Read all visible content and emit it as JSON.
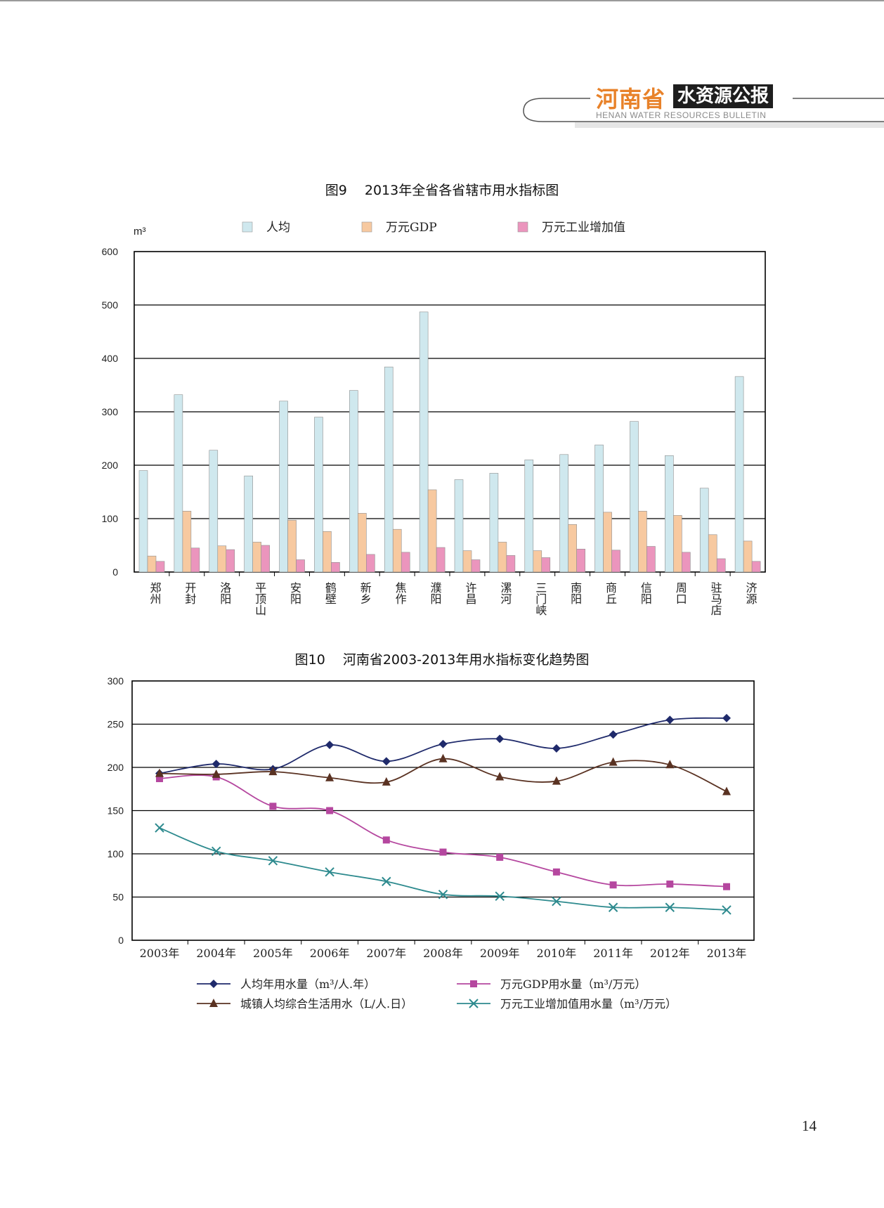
{
  "header": {
    "brand_cn": "河南省",
    "brand_box": "水资源公报",
    "brand_en": "HENAN WATER RESOURCES BULLETIN",
    "accent_color": "#e8822a"
  },
  "page_number": "14",
  "chart_data": [
    {
      "type": "bar",
      "title": "图9　 2013年全省各省辖市用水指标图",
      "ylabel": "m³",
      "ylim": [
        0,
        600
      ],
      "yticks": [
        0,
        100,
        200,
        300,
        400,
        500,
        600
      ],
      "categories": [
        "郑州",
        "开封",
        "洛阳",
        "平顶山",
        "安阳",
        "鹤壁",
        "新乡",
        "焦作",
        "濮阳",
        "许昌",
        "漯河",
        "三门峡",
        "南阳",
        "商丘",
        "信阳",
        "周口",
        "驻马店",
        "济源"
      ],
      "series": [
        {
          "name": "人均",
          "color": "#cfe8ee",
          "values": [
            190,
            332,
            228,
            180,
            320,
            290,
            340,
            384,
            487,
            173,
            185,
            210,
            220,
            238,
            282,
            218,
            157,
            366
          ]
        },
        {
          "name": "万元GDP",
          "color": "#f7c9a0",
          "values": [
            30,
            114,
            49,
            56,
            97,
            76,
            110,
            80,
            154,
            40,
            56,
            40,
            89,
            112,
            114,
            106,
            70,
            58
          ]
        },
        {
          "name": "万元工业增加值",
          "color": "#eb95bd",
          "values": [
            20,
            45,
            42,
            50,
            23,
            18,
            33,
            37,
            46,
            23,
            31,
            27,
            43,
            41,
            48,
            37,
            25,
            20
          ]
        }
      ],
      "grid": true,
      "legend_position": "top"
    },
    {
      "type": "line",
      "title": "图10　 河南省2003-2013年用水指标变化趋势图",
      "ylim": [
        0,
        300
      ],
      "yticks": [
        0,
        50,
        100,
        150,
        200,
        250,
        300
      ],
      "x": [
        "2003年",
        "2004年",
        "2005年",
        "2006年",
        "2007年",
        "2008年",
        "2009年",
        "2010年",
        "2011年",
        "2012年",
        "2013年"
      ],
      "series": [
        {
          "name": "人均年用水量（m³/人.年）",
          "color": "#1f2a6b",
          "marker": "diamond",
          "values": [
            193,
            204,
            198,
            226,
            207,
            227,
            233,
            222,
            238,
            255,
            257
          ]
        },
        {
          "name": "万元GDP用水量（m³/万元）",
          "color": "#b5479f",
          "marker": "square",
          "values": [
            187,
            189,
            155,
            150,
            116,
            102,
            96,
            79,
            64,
            65,
            62
          ]
        },
        {
          "name": "城镇人均综合生活用水（L/人.日）",
          "color": "#5a3222",
          "marker": "triangle",
          "values": [
            193,
            192,
            195,
            188,
            183,
            210,
            189,
            184,
            206,
            203,
            172
          ]
        },
        {
          "name": "万元工业增加值用水量（m³/万元）",
          "color": "#2d8a8e",
          "marker": "x",
          "values": [
            130,
            103,
            92,
            79,
            68,
            53,
            51,
            45,
            38,
            38,
            35
          ]
        }
      ],
      "grid": true,
      "legend_position": "bottom"
    }
  ]
}
